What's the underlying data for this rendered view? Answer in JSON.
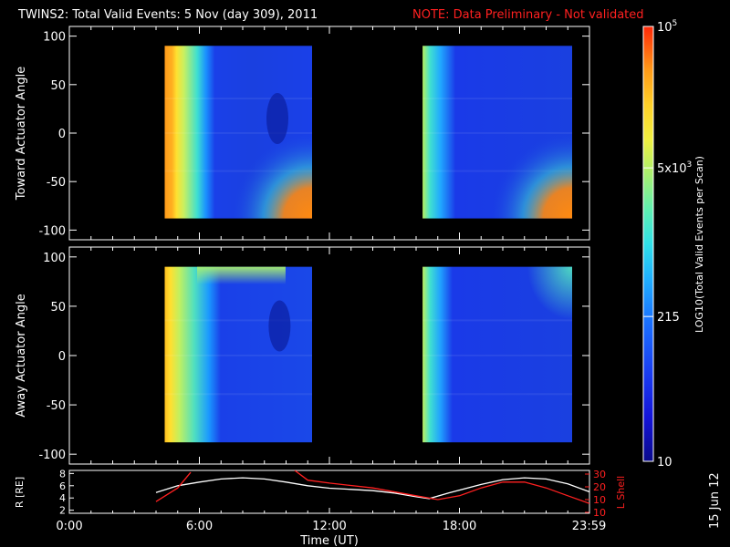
{
  "header": {
    "title": "TWINS2: Total Valid Events:  5 Nov (day 309), 2011",
    "note": "NOTE: Data Preliminary - Not validated"
  },
  "chart_data": [
    {
      "type": "heatmap",
      "name": "toward",
      "ylabel": "Toward Actuator Angle",
      "ylim": [
        -110,
        110
      ],
      "yticks": [
        "100",
        "50",
        "0",
        "-50",
        "-100"
      ],
      "blocks": [
        {
          "t0": 4.4,
          "t1": 11.2,
          "a0": -88,
          "a1": 90,
          "stops": [
            [
              0,
              "#ff9a1a"
            ],
            [
              0.05,
              "#ffb020"
            ],
            [
              0.08,
              "#ffe030"
            ],
            [
              0.13,
              "#c8f060"
            ],
            [
              0.22,
              "#3fe0d0"
            ],
            [
              0.28,
              "#1a90ff"
            ],
            [
              0.34,
              "#1a40e8"
            ],
            [
              0.6,
              "#1a40e0"
            ],
            [
              1,
              "#1a40e8"
            ]
          ],
          "features": [
            {
              "shape": "wedge",
              "color": "#ff8a10",
              "at": "bottom-right"
            },
            {
              "shape": "oval",
              "color": "#0c1ea0",
              "t": 9.6,
              "a": 15
            }
          ]
        },
        {
          "t0": 16.3,
          "t1": 23.2,
          "a0": -88,
          "a1": 90,
          "stops": [
            [
              0,
              "#b8f060"
            ],
            [
              0.05,
              "#40e0d0"
            ],
            [
              0.12,
              "#20a8ff"
            ],
            [
              0.22,
              "#1a3ae8"
            ],
            [
              1,
              "#1a40e0"
            ]
          ],
          "features": [
            {
              "shape": "wedge",
              "color": "#ff8a10",
              "at": "bottom-right"
            }
          ]
        }
      ]
    },
    {
      "type": "heatmap",
      "name": "away",
      "ylabel": "Away Actuator Angle",
      "ylim": [
        -110,
        110
      ],
      "yticks": [
        "100",
        "50",
        "0",
        "-50",
        "-100"
      ],
      "blocks": [
        {
          "t0": 4.4,
          "t1": 11.2,
          "a0": -88,
          "a1": 90,
          "stops": [
            [
              0,
              "#ffc020"
            ],
            [
              0.04,
              "#ffe030"
            ],
            [
              0.1,
              "#c0f060"
            ],
            [
              0.2,
              "#50e0c0"
            ],
            [
              0.3,
              "#1a98ff"
            ],
            [
              0.38,
              "#1a40e8"
            ],
            [
              1,
              "#1a48e8"
            ]
          ],
          "features": [
            {
              "shape": "top-band",
              "color": "#a8f070"
            },
            {
              "shape": "oval",
              "color": "#0c1ea0",
              "t": 9.7,
              "a": 30
            }
          ]
        },
        {
          "t0": 16.3,
          "t1": 23.2,
          "a0": -88,
          "a1": 90,
          "stops": [
            [
              0,
              "#c0f060"
            ],
            [
              0.05,
              "#40e0d0"
            ],
            [
              0.12,
              "#20a0ff"
            ],
            [
              0.2,
              "#1a3ae8"
            ],
            [
              1,
              "#1a40e0"
            ]
          ],
          "features": [
            {
              "shape": "top-right",
              "color": "#50e0c0"
            }
          ]
        }
      ]
    },
    {
      "type": "line",
      "name": "orbit",
      "xlabel": "Time (UT)",
      "xlim": [
        0,
        24
      ],
      "xticks": [
        {
          "t": 0,
          "label": "0:00"
        },
        {
          "t": 6,
          "label": "6:00"
        },
        {
          "t": 12,
          "label": "12:00"
        },
        {
          "t": 18,
          "label": "18:00"
        },
        {
          "t": 23.98,
          "label": "23:59"
        }
      ],
      "ylabel": "R [RE]",
      "ylim": [
        1.5,
        8.5
      ],
      "yticks": [
        "8",
        "6",
        "4",
        "2"
      ],
      "y2label": "L Shell",
      "y2lim": [
        9,
        31
      ],
      "y2ticks": [
        "30",
        "20",
        "10",
        "10"
      ],
      "series": [
        {
          "axis": "left",
          "color": "#ffffff",
          "points": [
            [
              4,
              4.9
            ],
            [
              5,
              6.0
            ],
            [
              6,
              6.6
            ],
            [
              7,
              7.1
            ],
            [
              8,
              7.3
            ],
            [
              9,
              7.1
            ],
            [
              10,
              6.6
            ],
            [
              11,
              6.0
            ],
            [
              12,
              5.6
            ],
            [
              13,
              5.4
            ],
            [
              14,
              5.2
            ],
            [
              15,
              4.8
            ],
            [
              16,
              4.2
            ],
            [
              16.6,
              3.9
            ],
            [
              17.5,
              4.8
            ],
            [
              19,
              6.2
            ],
            [
              20,
              7.0
            ],
            [
              21,
              7.3
            ],
            [
              22,
              7.1
            ],
            [
              23,
              6.3
            ],
            [
              24,
              5.0
            ]
          ]
        },
        {
          "axis": "right",
          "color": "#ff2020",
          "segments": [
            [
              [
                4,
                15
              ],
              [
                5,
                22
              ],
              [
                5.6,
                30
              ]
            ],
            [
              [
                10.4,
                31
              ],
              [
                11,
                26
              ],
              [
                12,
                24.5
              ],
              [
                14,
                22
              ],
              [
                16,
                18
              ],
              [
                17,
                16
              ],
              [
                18,
                18
              ],
              [
                19,
                22
              ],
              [
                20,
                25
              ],
              [
                21,
                25
              ],
              [
                22,
                22
              ],
              [
                23,
                18
              ],
              [
                24,
                14
              ]
            ]
          ]
        }
      ]
    }
  ],
  "colorbar": {
    "label": "LOG10(Total Valid Events per Scan)",
    "ticks": [
      {
        "v": 1.0,
        "base": "10",
        "exp": ""
      },
      {
        "v": 2.332,
        "base": "215",
        "exp": ""
      },
      {
        "v": 3.699,
        "base": "5x10",
        "exp": "3"
      },
      {
        "v": 5.0,
        "base": "10",
        "exp": "5"
      }
    ],
    "range": [
      1.0,
      5.0
    ],
    "stops": [
      [
        0,
        "#0a0a8a"
      ],
      [
        0.1,
        "#1414d8"
      ],
      [
        0.2,
        "#1a3cf0"
      ],
      [
        0.32,
        "#1a70ff"
      ],
      [
        0.42,
        "#20b0ff"
      ],
      [
        0.5,
        "#30e0e8"
      ],
      [
        0.58,
        "#60f0b0"
      ],
      [
        0.66,
        "#a8f070"
      ],
      [
        0.74,
        "#f0f040"
      ],
      [
        0.82,
        "#ffd028"
      ],
      [
        0.9,
        "#ff9a18"
      ],
      [
        1,
        "#ff2808"
      ]
    ]
  },
  "date_stamp": "15 Jun 12"
}
